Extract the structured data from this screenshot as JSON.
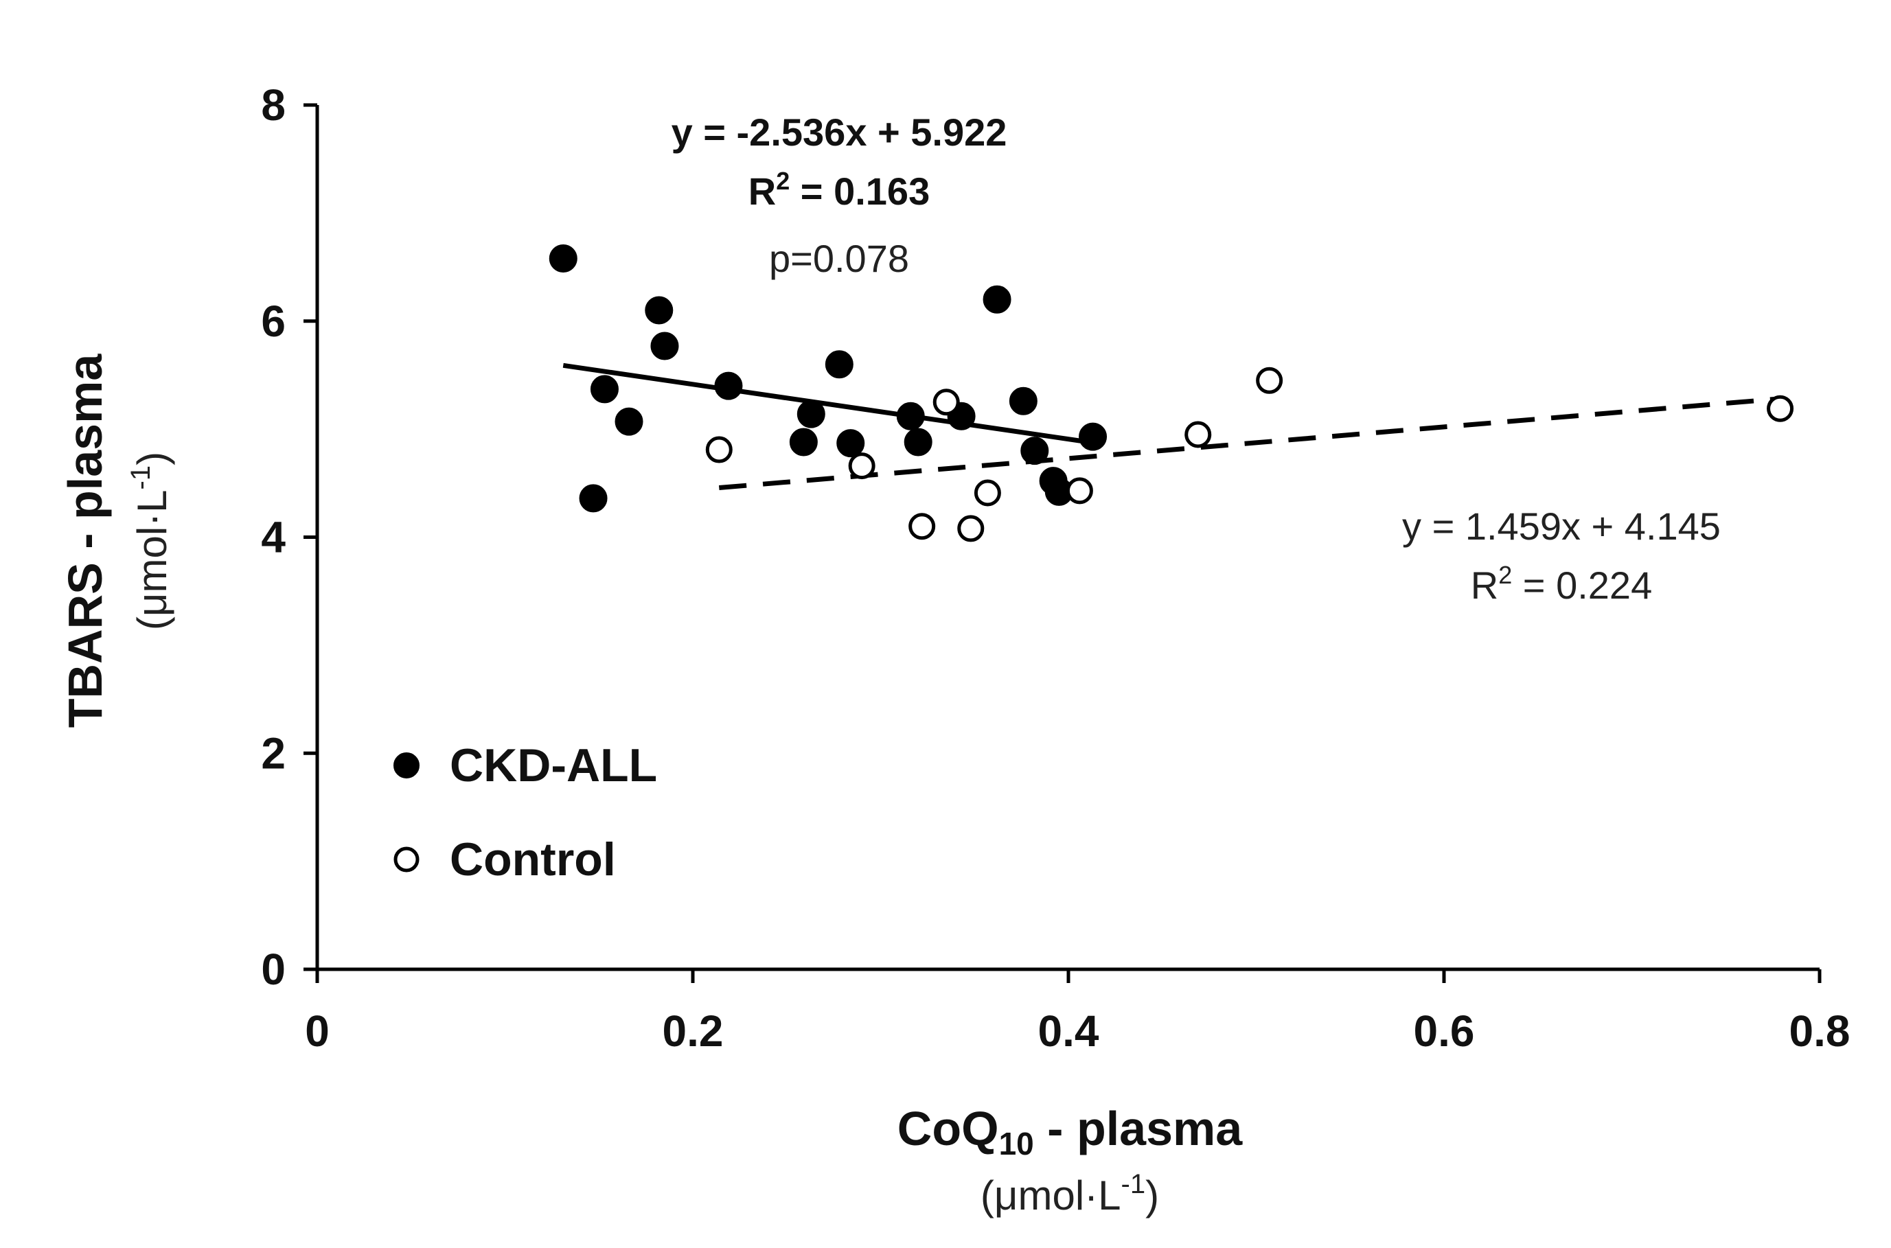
{
  "chart_data": {
    "type": "scatter",
    "xlabel": "CoQ",
    "xlabel_sub": "10",
    "xlabel_suffix": " - plasma",
    "xunit_prefix": "(μmol·L",
    "xunit_sup": "-1",
    "xunit_suffix": ")",
    "ylabel": "TBARS - plasma",
    "yunit_prefix": "(μmol·L",
    "yunit_sup": "-1",
    "yunit_suffix": ")",
    "xlim": [
      0,
      0.8
    ],
    "ylim": [
      0,
      8
    ],
    "xticks": [
      0,
      0.2,
      0.4,
      0.6,
      0.8
    ],
    "xtick_labels": [
      "0",
      "0.2",
      "0.4",
      "0.6",
      "0.8"
    ],
    "yticks": [
      0,
      2,
      4,
      6,
      8
    ],
    "ytick_labels": [
      "0",
      "2",
      "4",
      "6",
      "8"
    ],
    "legend_position": "bottom-left",
    "series": [
      {
        "name": "CKD-ALL",
        "marker": "filled-circle",
        "color": "#000000",
        "points": [
          [
            0.131,
            6.58
          ],
          [
            0.147,
            4.36
          ],
          [
            0.153,
            5.37
          ],
          [
            0.166,
            5.07
          ],
          [
            0.182,
            6.1
          ],
          [
            0.185,
            5.77
          ],
          [
            0.219,
            5.4
          ],
          [
            0.259,
            4.88
          ],
          [
            0.263,
            5.14
          ],
          [
            0.278,
            5.6
          ],
          [
            0.284,
            4.87
          ],
          [
            0.316,
            5.12
          ],
          [
            0.32,
            4.88
          ],
          [
            0.343,
            5.12
          ],
          [
            0.362,
            6.2
          ],
          [
            0.376,
            5.26
          ],
          [
            0.382,
            4.8
          ],
          [
            0.392,
            4.52
          ],
          [
            0.395,
            4.42
          ],
          [
            0.413,
            4.93
          ]
        ],
        "trendline": {
          "style": "solid",
          "x_range": [
            0.131,
            0.413
          ],
          "slope": -2.536,
          "intercept": 5.922,
          "equation": "y = -2.536x + 5.922",
          "r2_prefix": "R",
          "r2_sup": "2",
          "r2_suffix": " = 0.163",
          "p_value": "p=0.078"
        }
      },
      {
        "name": "Control",
        "marker": "open-circle",
        "color": "#000000",
        "points": [
          [
            0.214,
            4.81
          ],
          [
            0.29,
            4.66
          ],
          [
            0.322,
            4.1
          ],
          [
            0.335,
            5.25
          ],
          [
            0.348,
            4.08
          ],
          [
            0.357,
            4.41
          ],
          [
            0.406,
            4.43
          ],
          [
            0.469,
            4.95
          ],
          [
            0.507,
            5.45
          ],
          [
            0.779,
            5.19
          ]
        ],
        "trendline": {
          "style": "dashed",
          "x_range": [
            0.214,
            0.779
          ],
          "slope": 1.459,
          "intercept": 4.145,
          "equation": "y = 1.459x + 4.145",
          "r2_prefix": "R",
          "r2_sup": "2",
          "r2_suffix": " = 0.224"
        }
      }
    ]
  }
}
